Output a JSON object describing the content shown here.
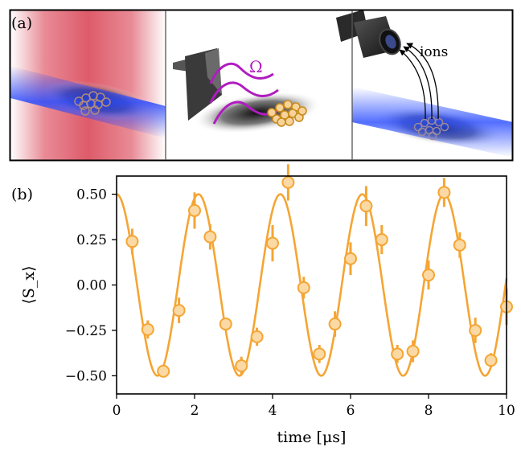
{
  "panels": {
    "a_label": "(a)",
    "b_label": "(b)",
    "a_omega": "Ω",
    "a_ions": "ions"
  },
  "colors": {
    "data": "#f5a533",
    "data_fill": "#fbd9a4",
    "laser_red": "#e0606e",
    "beam_blue": "#2a4cff",
    "drive": "#b01cc0"
  },
  "chart_data": {
    "type": "scatter",
    "title": "",
    "xlabel": "time [μs]",
    "ylabel": "⟨S_x⟩",
    "xlim": [
      0,
      10
    ],
    "ylim": [
      -0.6,
      0.6
    ],
    "xticks": [
      0,
      2,
      4,
      6,
      8,
      10
    ],
    "xtick_labels": [
      "0",
      "2",
      "4",
      "6",
      "8",
      "10"
    ],
    "yticks": [
      0.5,
      0.25,
      0.0,
      -0.25,
      -0.5
    ],
    "ytick_labels": [
      "0.50",
      "0.25",
      "0.00",
      "−0.25",
      "−0.50"
    ],
    "grid": false,
    "fit": {
      "amplitude": 0.5,
      "period_us": 2.1,
      "phase": 0,
      "form": "0.5*cos(2*pi*t/2.1)"
    },
    "series": [
      {
        "x": [
          0.4,
          0.8,
          1.2,
          1.6,
          2.0,
          2.4,
          2.8,
          3.2,
          3.6,
          4.0,
          4.4,
          4.8,
          5.2,
          5.6,
          6.0,
          6.4,
          6.8,
          7.2,
          7.6,
          8.0,
          8.4,
          8.8,
          9.2,
          9.6,
          10.0
        ],
        "y": [
          0.24,
          -0.245,
          -0.475,
          -0.14,
          0.41,
          0.265,
          -0.215,
          -0.445,
          -0.285,
          0.23,
          0.565,
          -0.015,
          -0.38,
          -0.215,
          0.145,
          0.435,
          0.25,
          -0.38,
          -0.365,
          0.055,
          0.51,
          0.22,
          -0.25,
          -0.415,
          -0.12
        ],
        "err": [
          0.07,
          0.05,
          0.03,
          0.07,
          0.1,
          0.07,
          0.03,
          0.05,
          0.05,
          0.1,
          0.1,
          0.06,
          0.05,
          0.07,
          0.09,
          0.11,
          0.08,
          0.05,
          0.06,
          0.08,
          0.08,
          0.07,
          0.07,
          0.04,
          0.1
        ]
      }
    ]
  }
}
